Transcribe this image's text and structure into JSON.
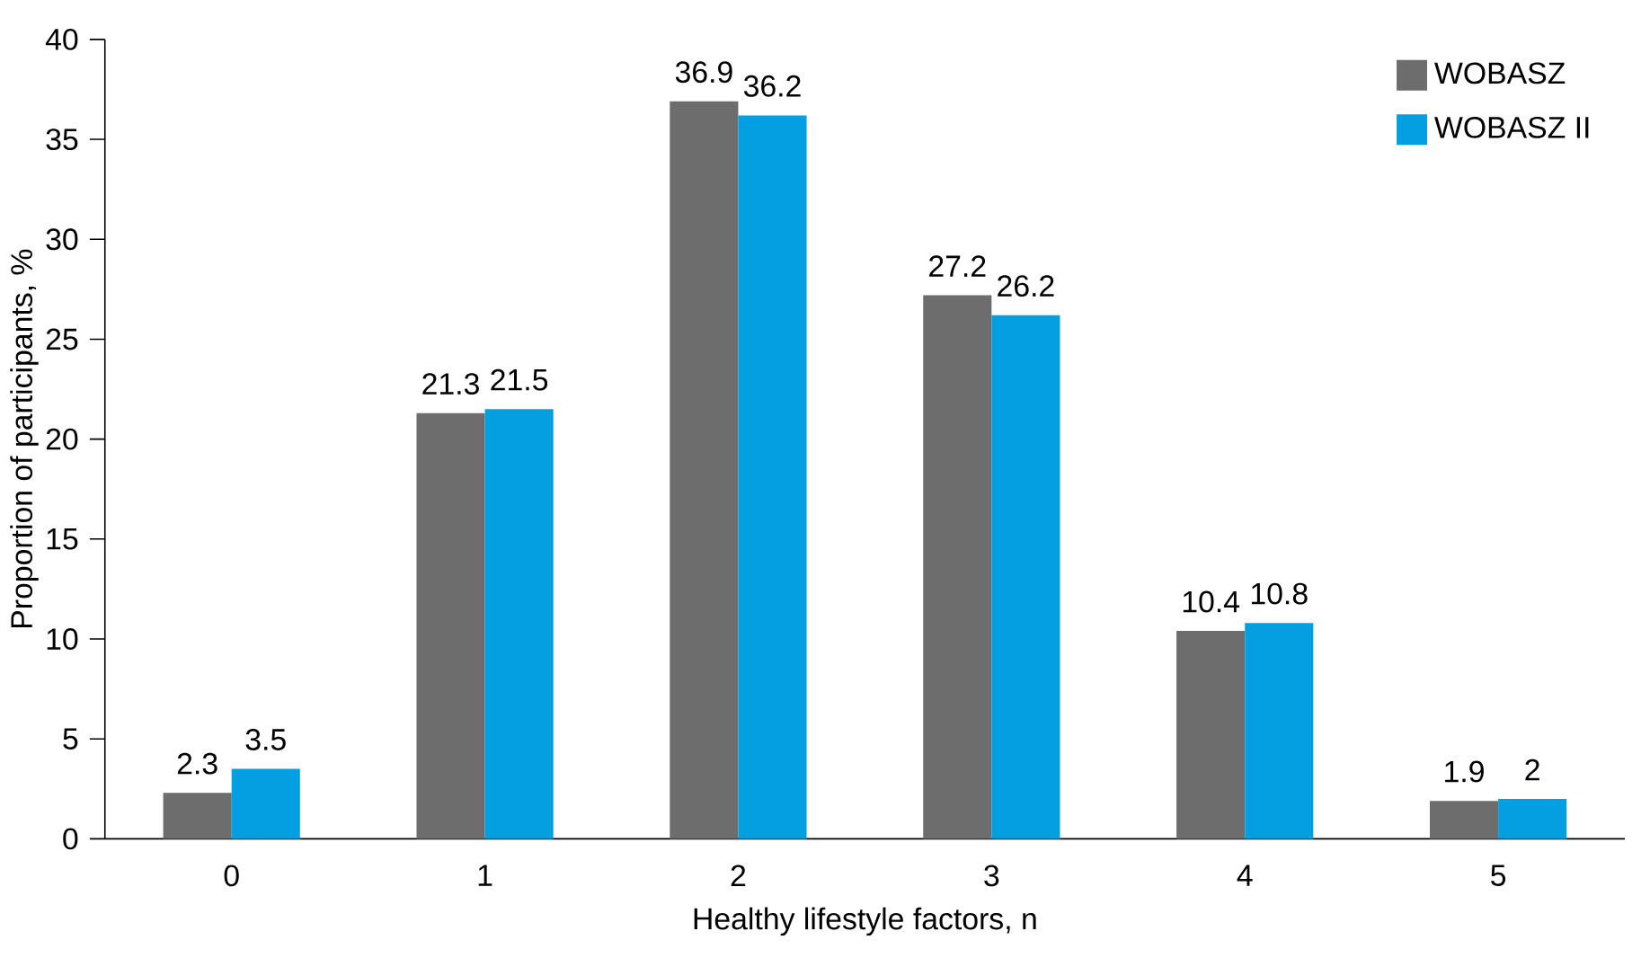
{
  "chart_data": {
    "type": "bar",
    "xlabel": "Healthy lifestyle factors, n",
    "ylabel": "Proportion of participants, %",
    "categories": [
      "0",
      "1",
      "2",
      "3",
      "4",
      "5"
    ],
    "series": [
      {
        "name": "WOBASZ",
        "color": "#6d6d6d",
        "values": [
          2.3,
          21.3,
          36.9,
          27.2,
          10.4,
          1.9
        ]
      },
      {
        "name": "WOBASZ II",
        "color": "#049fe0",
        "values": [
          3.5,
          21.5,
          36.2,
          26.2,
          10.8,
          2
        ]
      }
    ],
    "ylim": [
      0,
      40
    ],
    "yticks": [
      0,
      5,
      10,
      15,
      20,
      25,
      30,
      35,
      40
    ],
    "grid": false,
    "legend": "top right",
    "data_labels": true
  }
}
